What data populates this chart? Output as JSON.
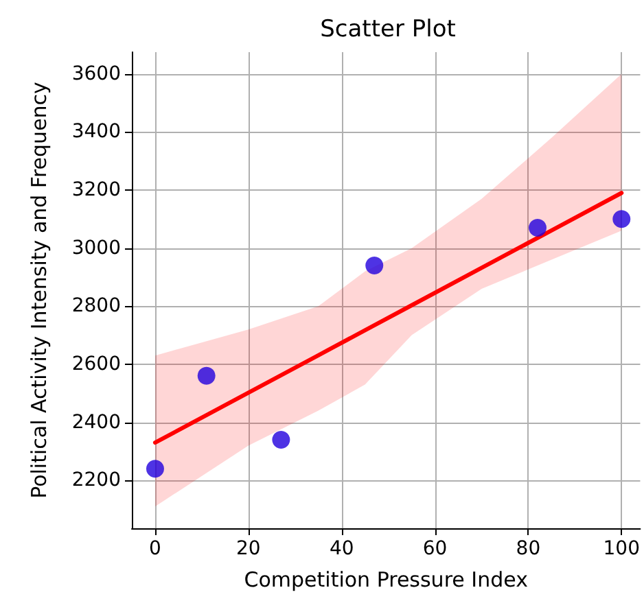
{
  "chart_data": {
    "type": "scatter",
    "title": "Scatter Plot",
    "xlabel": "Competition Pressure Index",
    "ylabel": "Political Activity Intensity and Frequency",
    "xlim": [
      -5,
      104
    ],
    "ylim": [
      2035,
      3675
    ],
    "xticks": [
      0,
      20,
      40,
      60,
      80,
      100
    ],
    "yticks": [
      2200,
      2400,
      2600,
      2800,
      3000,
      3200,
      3400,
      3600
    ],
    "grid": true,
    "marker": "circle",
    "series": [
      {
        "type": "scatter",
        "color": "#2200dd",
        "x": [
          0,
          11,
          27,
          47,
          82,
          100
        ],
        "values": [
          2240,
          2560,
          2340,
          2940,
          3070,
          3100
        ]
      },
      {
        "type": "line",
        "color": "#ff0000",
        "marker": "none",
        "x": [
          0,
          20,
          35,
          45,
          55,
          70,
          85,
          100
        ],
        "values": [
          2330,
          2502,
          2631,
          2717,
          2803,
          2932,
          3061,
          3190
        ],
        "lower": [
          2110,
          2320,
          2440,
          2530,
          2700,
          2860,
          2960,
          3060
        ],
        "upper": [
          2630,
          2720,
          2800,
          2920,
          3000,
          3170,
          3380,
          3600
        ]
      }
    ]
  }
}
